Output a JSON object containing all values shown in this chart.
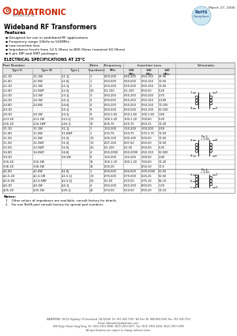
{
  "title": "Wideband RF Transformers",
  "date": "March 27, 2006",
  "features": [
    "Designed for use in wideband RF applications",
    "Frequency range 10kHz to 500MHz",
    "Low insertion loss",
    "Impedance levels from 12.5 Ohms to 800 Ohms (nominal 50 Ohms)",
    "6 pin DIP and SMT packages"
  ],
  "table_title": "ELECTRICAL SPECIFICATIONS AT 25°C",
  "section1_rows": [
    [
      "2-1-1D",
      "2-1-1W",
      "2-1-1J",
      "1",
      ".050-200",
      ".050-200",
      ".050-150",
      "20-90"
    ],
    [
      "2-1-6D",
      "2-1-6W",
      "2-1-6J",
      "1",
      ".050-500",
      ".050-500",
      ".050-150",
      "10-50"
    ],
    [
      "2-2-1D",
      "2-2-1W",
      "2-2-1J",
      "2",
      ".010-200",
      ".010-200",
      ".050-150",
      "10-50"
    ],
    [
      "2-2-5D",
      "2-2-5WF",
      "2-2-5J",
      "2.5",
      ".01-100",
      ".01-100",
      ".050-50",
      "5-20"
    ],
    [
      "2-3-1D",
      "2-3-1W",
      "2-3-1J",
      "3",
      ".050-250",
      ".050-250",
      ".050-200",
      "2-75"
    ],
    [
      "2-4-1D",
      "2-4-1W",
      "2-4-1J",
      "4",
      ".050-550",
      ".050-250",
      ".050-150",
      "2-100"
    ],
    [
      "2-4-6D",
      "2-4-6W",
      "2-4-6J",
      "4",
      ".050-250",
      ".050-250",
      ".050-150",
      "10-100"
    ],
    [
      "2-9-1D",
      "",
      "2-9-1J",
      "9",
      ".050-500",
      ".050-500",
      ".050-100",
      "50-100"
    ],
    [
      "2-9-1D",
      "2-9-1W",
      "2-9-1J",
      "9",
      ".050-1.60",
      ".050-1.60",
      ".100-1.60",
      "1-60"
    ],
    [
      "2-13-1D",
      "2-13-1W",
      "2-13-1J",
      "7.5",
      ".300-1.20",
      ".300-1.20",
      ".700-60",
      "5-20"
    ],
    [
      "2-16-1D",
      "2-16-1WF",
      "2-16-1J",
      "16",
      ".005-75",
      ".010-75",
      ".050-31",
      "10-20"
    ]
  ],
  "section2_rows": [
    [
      "3-1-1D",
      "3-1-1W",
      "3-1-1J",
      "1",
      ".150-200",
      ".150-200",
      ".300-200",
      "2-50"
    ],
    [
      "3-1-6D",
      "3-1-6W",
      "3-1-6WF",
      "1",
      ".010-75",
      ".010-75",
      ".070-1.75",
      "10-50"
    ],
    [
      "3-1-5D",
      "3-1-5W",
      "3-1-5J",
      "1.5",
      ".500-100",
      ".500-100",
      ".500-50",
      "10-50"
    ],
    [
      "3-1-5D",
      "3-1-5WF",
      "3-1-5J",
      "1.5",
      ".007-100",
      ".007-50",
      ".050-50",
      "10-50"
    ],
    [
      "3-2-5D",
      "3-2-5WF",
      "3-2-5J",
      "2.5",
      ".01-100",
      ".01-50",
      ".050-50",
      "5-25"
    ],
    [
      "3-4-6D",
      "3-4-6WC",
      "3-4-6J",
      "4",
      ".050-2000",
      ".050-2000",
      ".050-150",
      "50-500"
    ],
    [
      "3-9-1D",
      "",
      "3-9-1W",
      "9",
      ".150-200",
      ".150-200",
      ".300-50",
      "2-40"
    ],
    [
      "3-16-1D",
      "3-16-1W",
      "",
      "16",
      ".300-1.20",
      ".300-1.20",
      ".700-60",
      "10-20"
    ],
    [
      "3-36-1D",
      "3-36-1W",
      "",
      "36",
      ".000-20",
      "",
      ".050-10",
      "10-5"
    ]
  ],
  "section3_parts_d": [
    "4-1-6D",
    "4-1-5-1D",
    "4-2-5-6D",
    "4-4-1D",
    "4-25-1D"
  ],
  "section3_parts_w": [
    "4-1-6W",
    "4-1-5-1W",
    "4-2-5-6WF",
    "4-4-1W",
    "4-25-1W"
  ],
  "section3_parts_j": [
    "4-1-6J",
    "4-1-5-1J",
    "4-2-5-6J",
    "4-4-1J",
    "4-25-1J"
  ],
  "section3_ratio": [
    "1",
    "1.5",
    "2.5",
    "4",
    "25"
  ],
  "section3_freq": [
    ".004-500",
    ".075-500",
    ".01-50",
    ".050-200",
    ".010-50"
  ],
  "section3_0db": [
    ".004-500",
    ".075-500",
    ".010-50",
    ".050-200",
    ".010-50"
  ],
  "section3_3db": [
    ".500-2000",
    ".025-25",
    ".075-10",
    ".800-50",
    ".050-20"
  ],
  "section3_1db": [
    "50-50",
    "50-50",
    "05-10",
    "1-20",
    "10-10"
  ],
  "notes": [
    "1.   Other values of impedance are available, consult factory for details.",
    "2.   For non RoHS part consult factory for special part numbers."
  ],
  "footer_lines": [
    "DATATRONIC 28110 Highway 74 Homeland, CA 92548  Tel: 951-928-7700  Toll Free Tel: 888-889-5001 Fax: 951-928-7701",
    "Email: ddleadme@datatronic.com",
    "696 King’s Road, Hong Kong  Tel: (852) 2953 3898, (852) 2953 6677  Fax: (852) 2950 9294, (852) 2953 1998",
    "All specifications are subject to change without notice."
  ],
  "bg_color": "#ffffff",
  "logo_red": "#cc2200",
  "border_color": "#999999"
}
